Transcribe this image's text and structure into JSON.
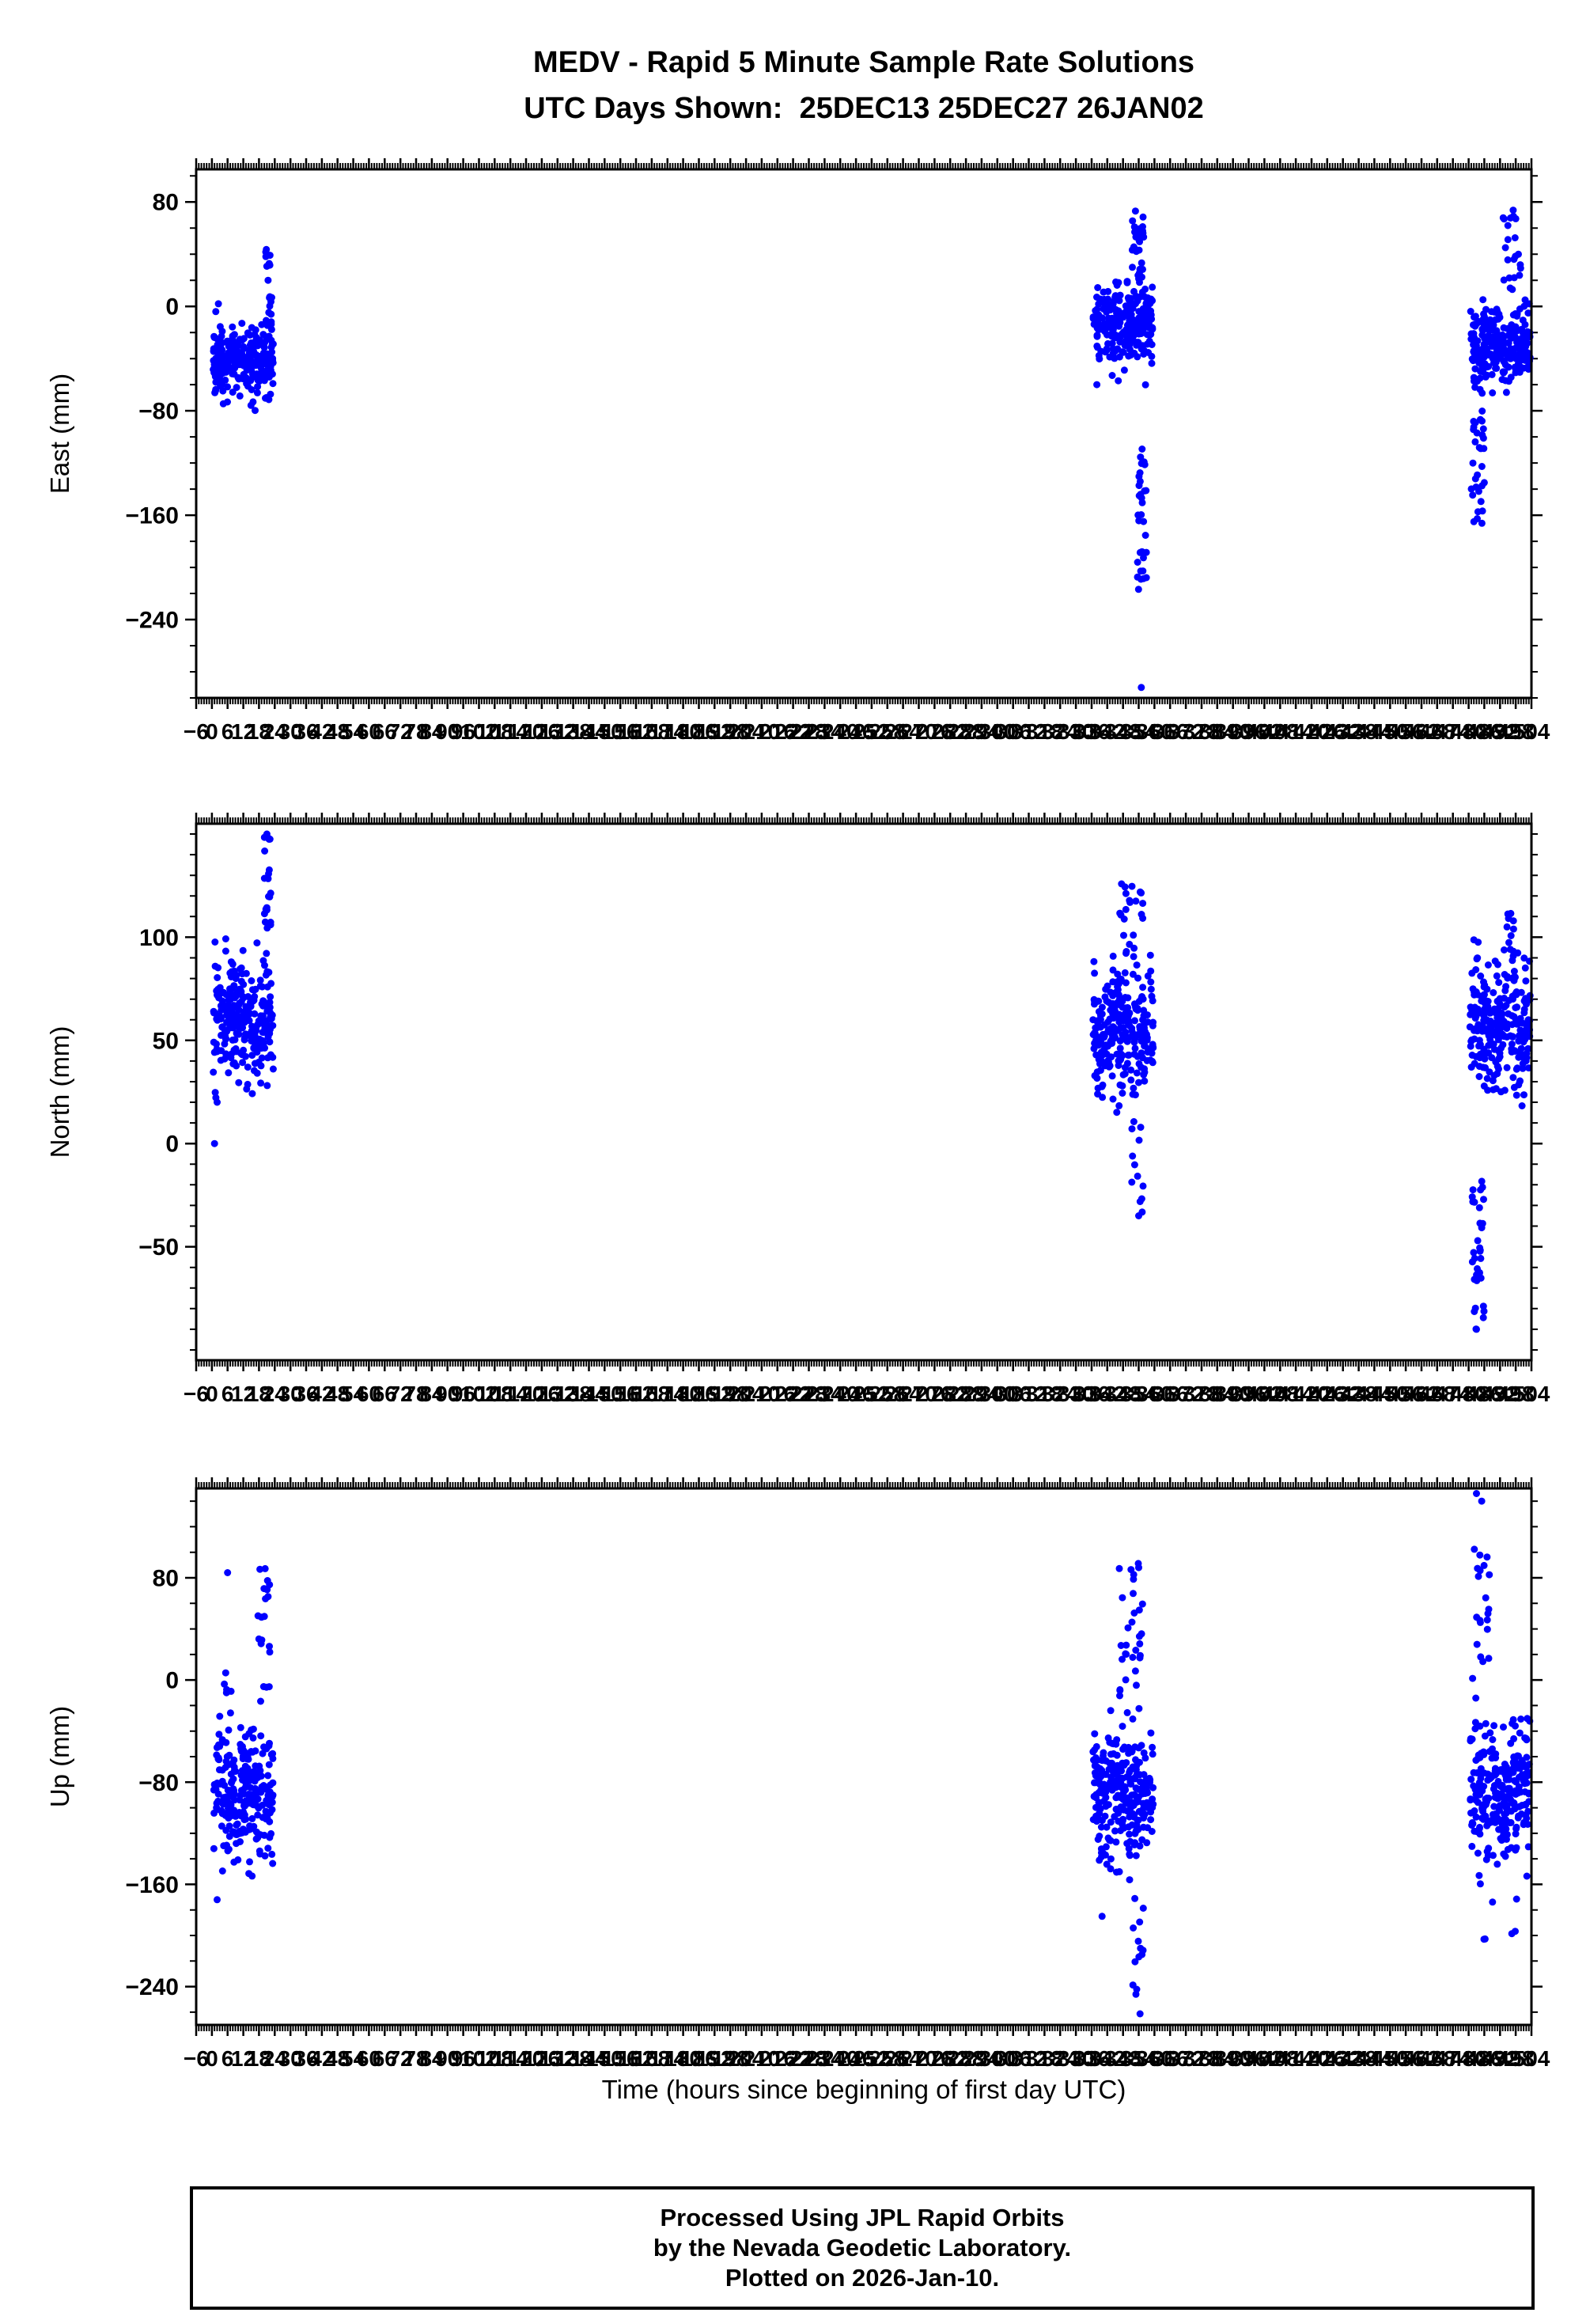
{
  "title": {
    "line1": "MEDV - Rapid 5 Minute Sample Rate Solutions",
    "line2": "UTC Days Shown:  25DEC13 25DEC27 26JAN02"
  },
  "station": "MEDV",
  "utc_days": [
    "25DEC13",
    "25DEC27",
    "26JAN02"
  ],
  "xlabel": "Time (hours since beginning of first day UTC)",
  "footer": {
    "line1": "Processed Using JPL Rapid Orbits",
    "line2": "by the Nevada Geodetic Laboratory.",
    "line3": "Plotted on 2026-Jan-10."
  },
  "point_color": "#0000ff",
  "axis_color": "#000000",
  "chart_data": [
    {
      "type": "scatter",
      "name": "East",
      "ylabel": "East (mm)",
      "ylim": [
        -300,
        105
      ],
      "yticks": [
        80,
        0,
        -80,
        -160,
        -240
      ],
      "yminor": 20,
      "xlim": [
        -6,
        504
      ],
      "xmajor": 6,
      "xminor": 1,
      "clusters": [
        {
          "x": [
            0.5,
            23.5
          ],
          "n": 250,
          "mean": -42,
          "sd": 13,
          "clip": [
            -80,
            -6
          ]
        },
        {
          "x": [
            20.5,
            23.0
          ],
          "n": 22,
          "range": [
            -25,
            44
          ]
        },
        {
          "x": [
            336.5,
            359.5
          ],
          "n": 255,
          "mean": -14,
          "sd": 15,
          "clip": [
            -65,
            25
          ]
        },
        {
          "x": [
            351.0,
            356.0
          ],
          "n": 30,
          "range": [
            18,
            76
          ]
        },
        {
          "x": [
            353.5,
            357.0
          ],
          "n": 32,
          "range": [
            -218,
            -108
          ]
        },
        {
          "x": [
            480.5,
            503.5
          ],
          "n": 250,
          "mean": -30,
          "sd": 15,
          "clip": [
            -70,
            8
          ]
        },
        {
          "x": [
            493.0,
            500.0
          ],
          "n": 22,
          "range": [
            8,
            75
          ]
        },
        {
          "x": [
            481.0,
            486.0
          ],
          "n": 30,
          "range": [
            -168,
            -75
          ]
        }
      ],
      "outliers": [
        [
          2.5,
          2
        ],
        [
          1.5,
          -4
        ],
        [
          355,
          -292
        ],
        [
          338,
          -60
        ],
        [
          482,
          -165
        ]
      ]
    },
    {
      "type": "scatter",
      "name": "North",
      "ylabel": "North (mm)",
      "ylim": [
        -105,
        155
      ],
      "yticks": [
        100,
        50,
        0,
        -50
      ],
      "yminor": 10,
      "xlim": [
        -6,
        504
      ],
      "xmajor": 6,
      "xminor": 1,
      "clusters": [
        {
          "x": [
            0.5,
            23.5
          ],
          "n": 250,
          "mean": 62,
          "sd": 15,
          "clip": [
            18,
            100
          ]
        },
        {
          "x": [
            19.5,
            22.5
          ],
          "n": 20,
          "range": [
            95,
            152
          ]
        },
        {
          "x": [
            336.5,
            359.5
          ],
          "n": 260,
          "mean": 57,
          "sd": 17,
          "clip": [
            12,
            100
          ]
        },
        {
          "x": [
            346.0,
            356.0
          ],
          "n": 22,
          "range": [
            92,
            126
          ]
        },
        {
          "x": [
            351.0,
            356.0
          ],
          "n": 12,
          "range": [
            -35,
            12
          ]
        },
        {
          "x": [
            480.5,
            503.5
          ],
          "n": 255,
          "mean": 57,
          "sd": 17,
          "clip": [
            15,
            100
          ]
        },
        {
          "x": [
            481.0,
            486.0
          ],
          "n": 34,
          "range": [
            -92,
            -18
          ]
        },
        {
          "x": [
            493.0,
            500.0
          ],
          "n": 12,
          "range": [
            92,
            112
          ]
        }
      ],
      "outliers": [
        [
          1,
          0
        ],
        [
          2,
          20
        ],
        [
          21,
          150
        ],
        [
          354,
          -35
        ],
        [
          483,
          -90
        ]
      ]
    },
    {
      "type": "scatter",
      "name": "Up",
      "ylabel": "Up (mm)",
      "ylim": [
        -270,
        150
      ],
      "yticks": [
        80,
        0,
        -80,
        -160,
        -240
      ],
      "yminor": 20,
      "xlim": [
        -6,
        504
      ],
      "xmajor": 6,
      "xminor": 1,
      "clusters": [
        {
          "x": [
            0.5,
            23.5
          ],
          "n": 255,
          "mean": -88,
          "sd": 24,
          "clip": [
            -165,
            -25
          ]
        },
        {
          "x": [
            17.5,
            22.5
          ],
          "n": 20,
          "range": [
            -20,
            88
          ]
        },
        {
          "x": [
            3.0,
            8.0
          ],
          "n": 5,
          "range": [
            -15,
            12
          ]
        },
        {
          "x": [
            336.5,
            359.5
          ],
          "n": 260,
          "mean": -88,
          "sd": 27,
          "clip": [
            -170,
            -20
          ]
        },
        {
          "x": [
            346.0,
            356.0
          ],
          "n": 30,
          "range": [
            -15,
            92
          ]
        },
        {
          "x": [
            351.0,
            357.0
          ],
          "n": 14,
          "range": [
            -262,
            -165
          ]
        },
        {
          "x": [
            480.5,
            503.5
          ],
          "n": 255,
          "mean": -88,
          "sd": 26,
          "clip": [
            -165,
            -20
          ]
        },
        {
          "x": [
            481.0,
            488.0
          ],
          "n": 22,
          "range": [
            -15,
            105
          ]
        },
        {
          "x": [
            484.0,
            500.0
          ],
          "n": 6,
          "range": [
            -215,
            -170
          ]
        }
      ],
      "outliers": [
        [
          6,
          84
        ],
        [
          2,
          -172
        ],
        [
          340,
          -185
        ],
        [
          354,
          88
        ],
        [
          483,
          146
        ],
        [
          485,
          140
        ]
      ]
    }
  ]
}
